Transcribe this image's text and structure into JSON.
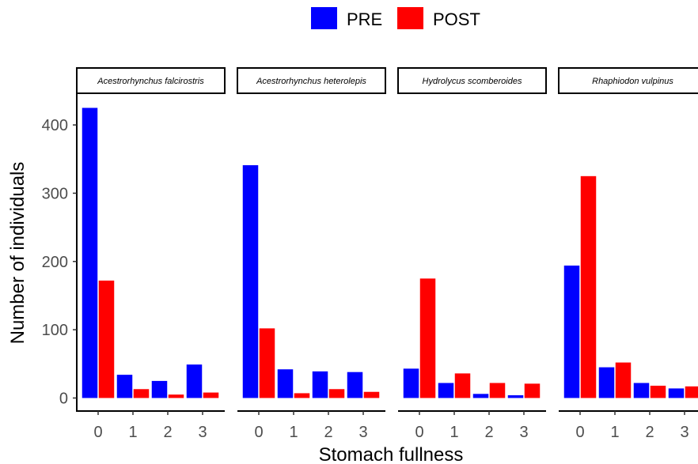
{
  "colors": {
    "PRE": "#0000ff",
    "POST": "#ff0000"
  },
  "chart_data": {
    "type": "bar",
    "xlabel": "Stomach fullness",
    "ylabel": "Number of individuals",
    "ylim": [
      0,
      440
    ],
    "yticks": [
      0,
      100,
      200,
      300,
      400
    ],
    "categories": [
      "0",
      "1",
      "2",
      "3"
    ],
    "legend": {
      "position": "top",
      "entries": [
        "PRE",
        "POST"
      ]
    },
    "grid": false,
    "panels": [
      {
        "title": "Acestrorhynchus falcirostris",
        "series": [
          {
            "name": "PRE",
            "values": [
              425,
              34,
              25,
              49
            ]
          },
          {
            "name": "POST",
            "values": [
              172,
              13,
              5,
              8
            ]
          }
        ]
      },
      {
        "title": "Acestrorhynchus heterolepis",
        "series": [
          {
            "name": "PRE",
            "values": [
              341,
              42,
              39,
              38
            ]
          },
          {
            "name": "POST",
            "values": [
              102,
              7,
              13,
              9
            ]
          }
        ]
      },
      {
        "title": "Hydrolycus scomberoides",
        "series": [
          {
            "name": "PRE",
            "values": [
              43,
              22,
              6,
              4
            ]
          },
          {
            "name": "POST",
            "values": [
              175,
              36,
              22,
              21
            ]
          }
        ]
      },
      {
        "title": "Rhaphiodon vulpinus",
        "series": [
          {
            "name": "PRE",
            "values": [
              194,
              45,
              22,
              14
            ]
          },
          {
            "name": "POST",
            "values": [
              325,
              52,
              18,
              17
            ]
          }
        ]
      }
    ]
  }
}
